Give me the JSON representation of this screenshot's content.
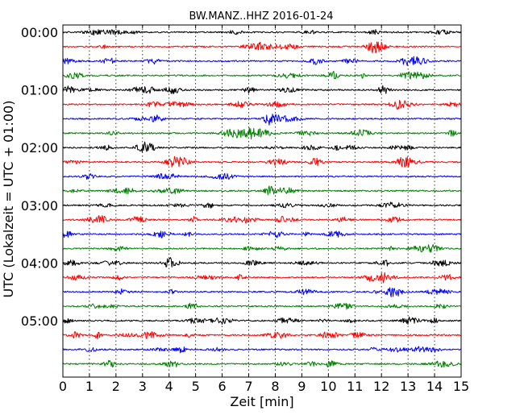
{
  "chart_data": {
    "type": "line",
    "title": "BW.MANZ..HHZ 2016-01-24",
    "xlabel": "Zeit  [min]",
    "ylabel": "UTC (Lokalzeit = UTC + 01:00)",
    "xlim": [
      0,
      15
    ],
    "x_ticks": [
      "0",
      "1",
      "2",
      "3",
      "4",
      "5",
      "6",
      "7",
      "8",
      "9",
      "10",
      "11",
      "12",
      "13",
      "14",
      "15"
    ],
    "y_ticks": [
      "00:00",
      "01:00",
      "02:00",
      "03:00",
      "04:00",
      "05:00"
    ],
    "trace_minutes": 15,
    "trace_count": 24,
    "grid": "vertical dotted lines at each minute",
    "series_colors": [
      "#000000",
      "#ff0000",
      "#0000ff",
      "#008000"
    ]
  }
}
